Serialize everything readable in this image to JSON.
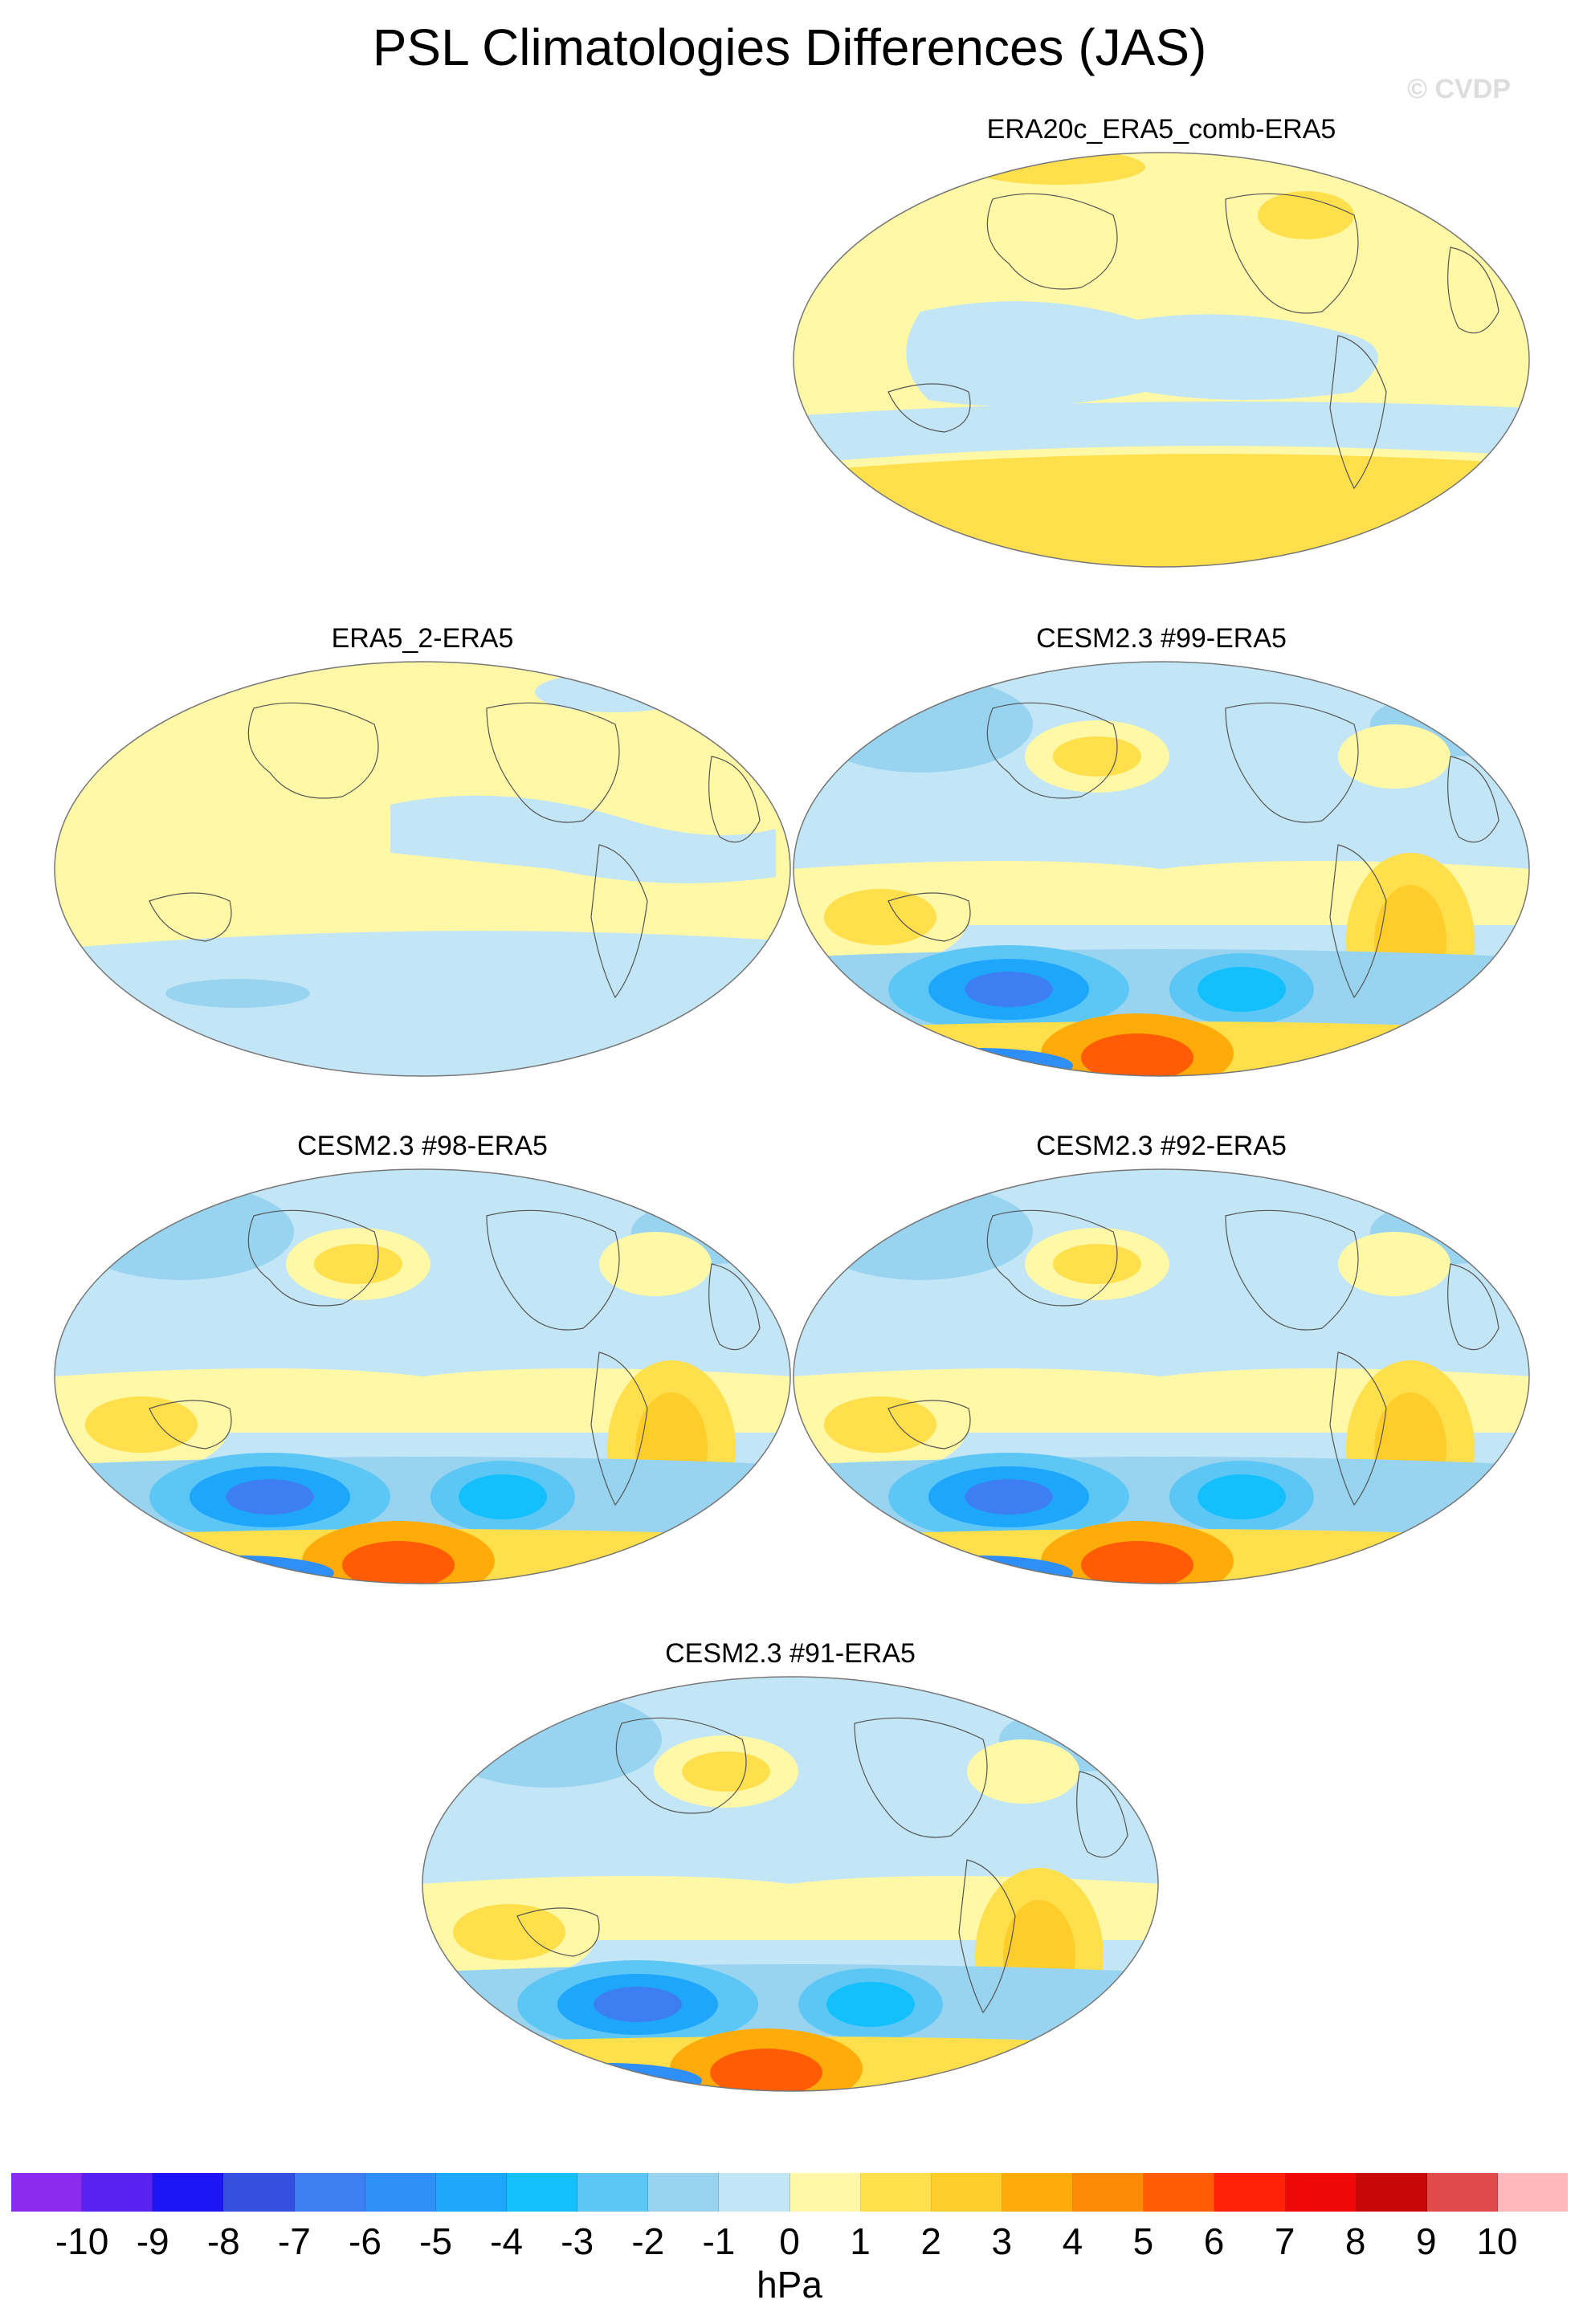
{
  "title": "PSL Climatologies Differences (JAS)",
  "watermark": "© CVDP",
  "colorbar": {
    "unit": "hPa",
    "labels": [
      "-10",
      "-9",
      "-8",
      "-7",
      "-6",
      "-5",
      "-4",
      "-3",
      "-2",
      "-1",
      "0",
      "1",
      "2",
      "3",
      "4",
      "5",
      "6",
      "7",
      "8",
      "9",
      "10"
    ],
    "colors": [
      "#8b2bef",
      "#5a22f0",
      "#1d14f4",
      "#3550e0",
      "#3d7ff2",
      "#2f8ff8",
      "#1ea6fa",
      "#13c0fb",
      "#5cc7f5",
      "#98d3f0",
      "#c3e6f7",
      "#fff8a6",
      "#ffe04c",
      "#ffcd2a",
      "#ffac0a",
      "#ff8a05",
      "#ff5c05",
      "#ff2007",
      "#ee0808",
      "#c80707",
      "#e04a4a",
      "#ffb9bd"
    ]
  },
  "panels": [
    {
      "id": "era20c",
      "title": "ERA20c_ERA5_comb-ERA5",
      "pattern": "weak-warm"
    },
    {
      "id": "era5_2",
      "title": "ERA5_2-ERA5",
      "pattern": "near-zero"
    },
    {
      "id": "cesm99",
      "title": "CESM2.3 #99-ERA5",
      "pattern": "strong"
    },
    {
      "id": "cesm98",
      "title": "CESM2.3 #98-ERA5",
      "pattern": "strong"
    },
    {
      "id": "cesm92",
      "title": "CESM2.3 #92-ERA5",
      "pattern": "strong"
    },
    {
      "id": "cesm91",
      "title": "CESM2.3 #91-ERA5",
      "pattern": "strong"
    }
  ]
}
